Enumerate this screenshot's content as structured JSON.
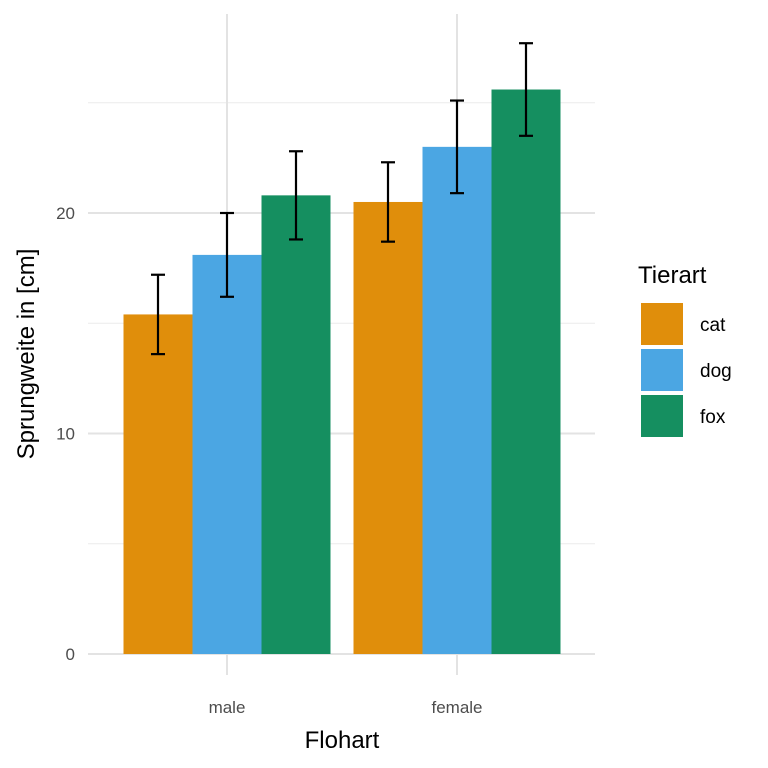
{
  "chart_data": {
    "type": "bar",
    "xlabel": "Flohart",
    "ylabel": "Sprungweite in [cm]",
    "categories": [
      "male",
      "female"
    ],
    "ylim": [
      -0.5,
      29
    ],
    "yticks": [
      0,
      10,
      20
    ],
    "grid": true,
    "legend": {
      "title": "Tierart",
      "position": "right"
    },
    "series": [
      {
        "name": "cat",
        "color": "#E08E0B",
        "values": [
          15.4,
          20.5
        ],
        "error": [
          1.8,
          1.8
        ]
      },
      {
        "name": "dog",
        "color": "#4BA6E3",
        "values": [
          18.1,
          23.0
        ],
        "error": [
          1.9,
          2.1
        ]
      },
      {
        "name": "fox",
        "color": "#158F60",
        "values": [
          20.8,
          25.6
        ],
        "error": [
          2.0,
          2.1
        ]
      }
    ]
  }
}
